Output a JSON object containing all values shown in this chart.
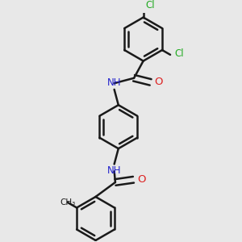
{
  "bg_color": "#e8e8e8",
  "bond_color": "#1a1a1a",
  "N_color": "#2222cc",
  "O_color": "#dd2222",
  "Cl_color": "#22aa22",
  "lw": 1.8,
  "r": 0.42,
  "xlim": [
    -1.8,
    1.8
  ],
  "ylim": [
    -2.2,
    2.2
  ]
}
